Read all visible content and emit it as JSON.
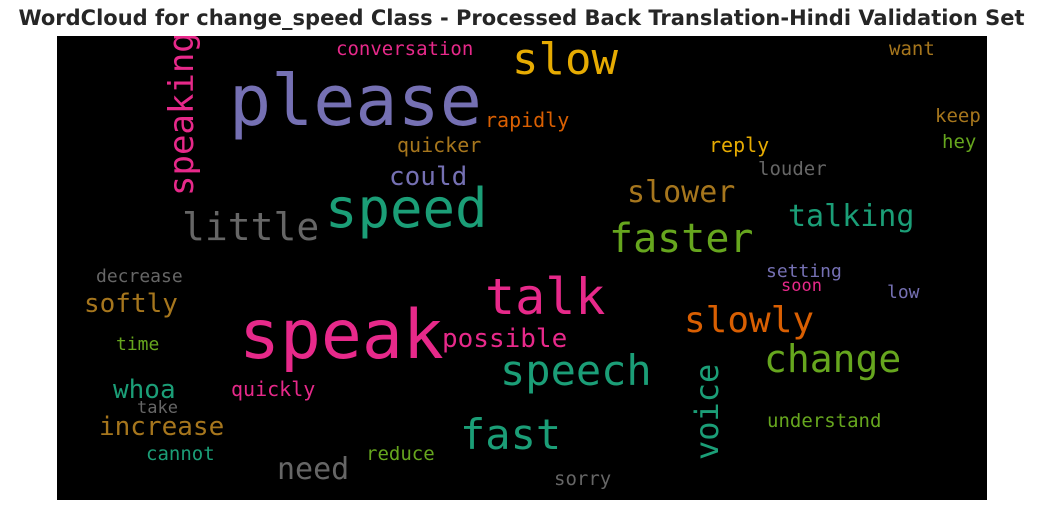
{
  "title": "WordCloud for change_speed Class - Processed Back Translation-Hindi Validation Set",
  "words": [
    {
      "text": "please",
      "color": "#7570b3"
    },
    {
      "text": "speak",
      "color": "#e7298a"
    },
    {
      "text": "speed",
      "color": "#1b9e77"
    },
    {
      "text": "talk",
      "color": "#e7298a"
    },
    {
      "text": "slow",
      "color": "#e6ab02"
    },
    {
      "text": "fast",
      "color": "#1b9e77"
    },
    {
      "text": "speech",
      "color": "#1b9e77"
    },
    {
      "text": "faster",
      "color": "#66a61e"
    },
    {
      "text": "little",
      "color": "#666666"
    },
    {
      "text": "change",
      "color": "#66a61e"
    },
    {
      "text": "slowly",
      "color": "#d95f02"
    },
    {
      "text": "speaking",
      "color": "#e7298a"
    },
    {
      "text": "voice",
      "color": "#1b9e77"
    },
    {
      "text": "talking",
      "color": "#1b9e77"
    },
    {
      "text": "slower",
      "color": "#a6761d"
    },
    {
      "text": "need",
      "color": "#666666"
    },
    {
      "text": "possible",
      "color": "#e7298a"
    },
    {
      "text": "increase",
      "color": "#a6761d"
    },
    {
      "text": "softly",
      "color": "#a6761d"
    },
    {
      "text": "whoa",
      "color": "#1b9e77"
    },
    {
      "text": "could",
      "color": "#7570b3"
    },
    {
      "text": "conversation",
      "color": "#e7298a"
    },
    {
      "text": "rapidly",
      "color": "#d95f02"
    },
    {
      "text": "quicker",
      "color": "#a6761d"
    },
    {
      "text": "reply",
      "color": "#e6ab02"
    },
    {
      "text": "louder",
      "color": "#666666"
    },
    {
      "text": "want",
      "color": "#a6761d"
    },
    {
      "text": "keep",
      "color": "#a6761d"
    },
    {
      "text": "hey",
      "color": "#66a61e"
    },
    {
      "text": "decrease",
      "color": "#666666"
    },
    {
      "text": "time",
      "color": "#66a61e"
    },
    {
      "text": "quickly",
      "color": "#e7298a"
    },
    {
      "text": "take",
      "color": "#666666"
    },
    {
      "text": "cannot",
      "color": "#1b9e77"
    },
    {
      "text": "reduce",
      "color": "#66a61e"
    },
    {
      "text": "sorry",
      "color": "#666666"
    },
    {
      "text": "understand",
      "color": "#66a61e"
    },
    {
      "text": "setting",
      "color": "#7570b3"
    },
    {
      "text": "soon",
      "color": "#e7298a"
    },
    {
      "text": "low",
      "color": "#7570b3"
    }
  ]
}
